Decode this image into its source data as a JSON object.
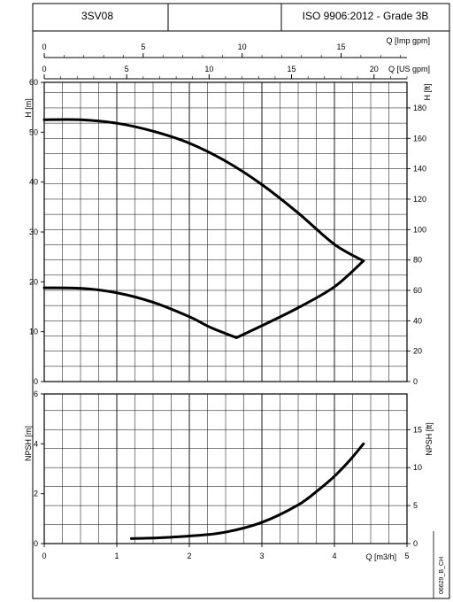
{
  "header": {
    "model": "3SV08",
    "middle": "",
    "standard": "ISO 9906:2012 - Grade 3B"
  },
  "drawing_code": "06629_B_CH",
  "chart_data": [
    {
      "type": "line",
      "title": "",
      "x_axis": {
        "label": "Q [m3/h]",
        "range": [
          0,
          5
        ],
        "ticks": [
          0,
          1,
          2,
          3,
          4,
          5
        ]
      },
      "secondary_x_axes": [
        {
          "label": "Q [Imp gpm]",
          "range": [
            0,
            18.33
          ],
          "ticks": [
            0,
            5,
            10,
            15
          ]
        },
        {
          "label": "Q [US gpm]",
          "range": [
            0,
            22
          ],
          "ticks": [
            0,
            5,
            10,
            15,
            20
          ]
        }
      ],
      "y_axis": {
        "label": "H [m]",
        "range": [
          0,
          60
        ],
        "ticks": [
          0,
          10,
          20,
          30,
          40,
          50,
          60
        ]
      },
      "y2_axis": {
        "label": "H [ft]",
        "range": [
          0,
          196.85
        ],
        "ticks": [
          0,
          20,
          40,
          60,
          80,
          100,
          120,
          140,
          160,
          180
        ]
      },
      "grid": true,
      "series": [
        {
          "x": [
            0,
            0.5,
            1.0,
            1.5,
            2.0,
            2.5,
            3.0,
            3.5,
            4.0,
            4.4
          ],
          "y": [
            52.5,
            52.5,
            51.8,
            50.2,
            47.8,
            44.2,
            39.5,
            33.8,
            27.5,
            24.2
          ]
        },
        {
          "x": [
            0,
            0.5,
            1.0,
            1.5,
            2.0,
            2.3,
            2.65
          ],
          "y": [
            18.8,
            18.7,
            17.8,
            15.9,
            13.0,
            10.8,
            8.8
          ]
        },
        {
          "x": [
            2.65,
            3.0,
            3.5,
            4.0,
            4.4
          ],
          "y": [
            8.8,
            11.2,
            14.8,
            19.0,
            24.2
          ]
        }
      ]
    },
    {
      "type": "line",
      "title": "",
      "x_axis": {
        "label": "Q [m3/h]",
        "range": [
          0,
          5
        ],
        "ticks": [
          0,
          1,
          2,
          3,
          4,
          5
        ]
      },
      "y_axis": {
        "label": "NPSH [m]",
        "range": [
          0,
          6
        ],
        "ticks": [
          0,
          2,
          4,
          6
        ]
      },
      "y2_axis": {
        "label": "NPSH [ft]",
        "range": [
          0,
          19.69
        ],
        "ticks": [
          0,
          5,
          10,
          15
        ]
      },
      "grid": true,
      "series": [
        {
          "x": [
            1.2,
            1.5,
            2.0,
            2.5,
            3.0,
            3.5,
            3.8,
            4.0,
            4.2,
            4.4
          ],
          "y": [
            0.2,
            0.22,
            0.3,
            0.46,
            0.85,
            1.55,
            2.2,
            2.7,
            3.3,
            4.0
          ]
        }
      ]
    }
  ]
}
